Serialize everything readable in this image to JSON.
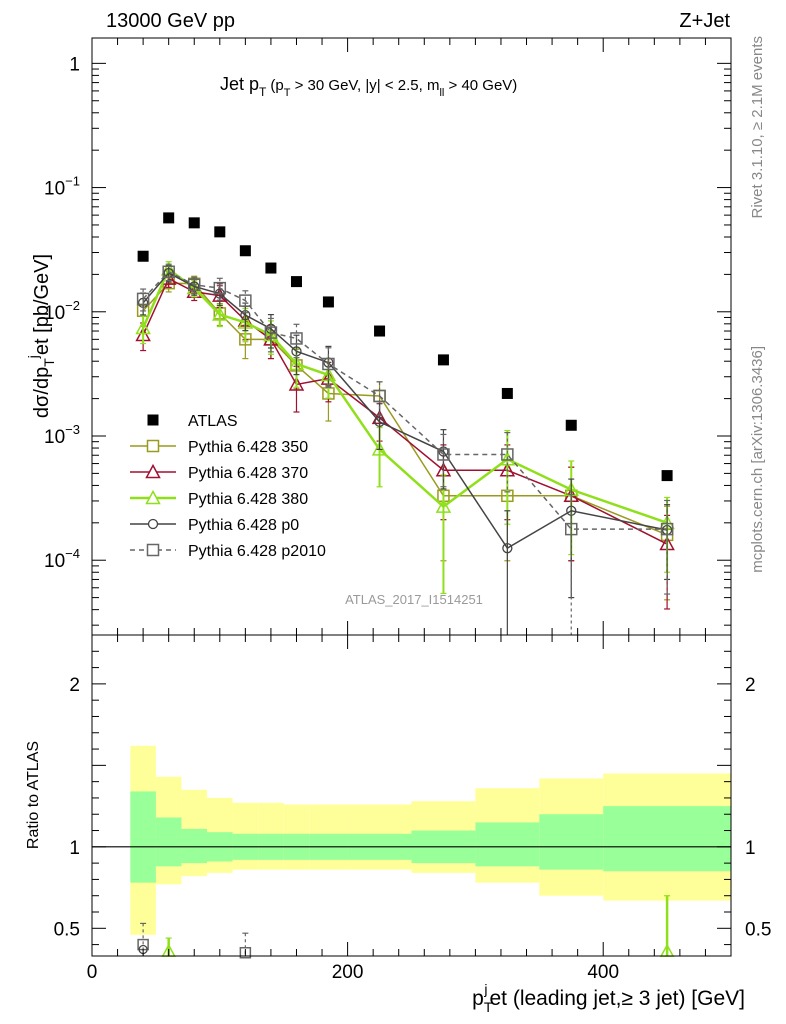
{
  "header": {
    "left": "13000 GeV pp",
    "right": "Z+Jet"
  },
  "side_labels": {
    "rivet": "Rivet 3.1.10, ≥ 2.1M events",
    "mcplots": "mcplots.cern.ch [arXiv:1306.3436]"
  },
  "plot_title": {
    "main": "Jet p",
    "main_sub": "T",
    "cuts_1": "(p",
    "cuts_1_sub": "T",
    "cuts_2": " > 30 GeV, |y| < 2.5, m",
    "cuts_2_sub": "ll",
    "cuts_3": " > 40 GeV)"
  },
  "watermark": "ATLAS_2017_I1514251",
  "axes": {
    "ylabel_top": "dσ/dp",
    "ylabel_top_sub": "T",
    "ylabel_top_sup": "j",
    "ylabel_top_tail": "et [pb/GeV]",
    "ylabel_bottom": "Ratio to ATLAS",
    "xlabel_head": "p",
    "xlabel_sub": "T",
    "xlabel_sup": "j",
    "xlabel_tail": "et (leading jet,≥ 3 jet) [GeV]"
  },
  "chart_data": {
    "type": "scatter",
    "x_scale": "linear",
    "y_scale_main": "log",
    "xlim": [
      0,
      500
    ],
    "ylim_main": [
      2.5e-05,
      1.6
    ],
    "ylim_ratio": [
      0.33,
      2.3
    ],
    "x_ticks": [
      0,
      200,
      400
    ],
    "y_ticks_main": [
      {
        "value": 1,
        "label": "1"
      },
      {
        "value": 0.1,
        "label": "10",
        "exp": "−1"
      },
      {
        "value": 0.01,
        "label": "10",
        "exp": "−2"
      },
      {
        "value": 0.001,
        "label": "10",
        "exp": "−3"
      },
      {
        "value": 0.0001,
        "label": "10",
        "exp": "−4"
      }
    ],
    "y_ticks_ratio": [
      {
        "value": 0.5,
        "label": "0.5"
      },
      {
        "value": 1,
        "label": "1"
      },
      {
        "value": 2,
        "label": "2"
      }
    ],
    "bins": [
      [
        30,
        50
      ],
      [
        50,
        70
      ],
      [
        70,
        90
      ],
      [
        90,
        110
      ],
      [
        110,
        130
      ],
      [
        130,
        150
      ],
      [
        150,
        170
      ],
      [
        170,
        200
      ],
      [
        200,
        250
      ],
      [
        250,
        300
      ],
      [
        300,
        350
      ],
      [
        350,
        400
      ],
      [
        400,
        500
      ]
    ],
    "legend_placement": "lower-left",
    "series": [
      {
        "name": "ATLAS",
        "color": "#000000",
        "marker": "filled-square",
        "x": [
          40,
          60,
          80,
          100,
          120,
          140,
          160,
          185,
          225,
          275,
          325,
          375,
          450
        ],
        "y": [
          0.028,
          0.057,
          0.052,
          0.044,
          0.031,
          0.0225,
          0.0175,
          0.012,
          0.007,
          0.0041,
          0.0022,
          0.00122,
          0.00048
        ]
      },
      {
        "name": "Pythia 6.428 350",
        "color": "#9a9a1e",
        "marker": "open-square",
        "width": 1.5,
        "x": [
          40,
          60,
          80,
          100,
          120,
          140,
          160,
          185,
          225,
          275,
          325,
          375,
          450
        ],
        "y": [
          0.0102,
          0.017,
          0.0168,
          0.0097,
          0.006,
          0.006,
          0.0037,
          0.0022,
          0.0021,
          0.00033,
          0.00033,
          0.00033,
          0.00016
        ],
        "err": [
          0.25,
          0.15,
          0.15,
          0.2,
          0.3,
          0.3,
          0.35,
          0.4,
          0.3,
          0.7,
          0.7,
          0.7,
          0.7
        ]
      },
      {
        "name": "Pythia 6.428 370",
        "color": "#a01030",
        "marker": "open-triangle",
        "width": 1.5,
        "x": [
          40,
          60,
          80,
          100,
          120,
          140,
          160,
          185,
          225,
          275,
          325,
          375,
          450
        ],
        "y": [
          0.0065,
          0.0185,
          0.0145,
          0.0135,
          0.0085,
          0.006,
          0.0026,
          0.0029,
          0.0014,
          0.00053,
          0.00053,
          0.00033,
          0.000135
        ],
        "err": [
          0.25,
          0.15,
          0.15,
          0.2,
          0.3,
          0.3,
          0.4,
          0.35,
          0.35,
          0.6,
          0.6,
          0.7,
          0.7
        ]
      },
      {
        "name": "Pythia 6.428 380",
        "color": "#8fe01a",
        "marker": "open-triangle",
        "width": 2.5,
        "x": [
          40,
          60,
          80,
          100,
          120,
          140,
          160,
          185,
          225,
          275,
          325,
          375,
          450
        ],
        "y": [
          0.0074,
          0.022,
          0.0155,
          0.0095,
          0.0082,
          0.0065,
          0.0038,
          0.0031,
          0.00078,
          0.00027,
          0.00065,
          0.00037,
          0.0002
        ],
        "err": [
          0.25,
          0.15,
          0.15,
          0.2,
          0.3,
          0.3,
          0.35,
          0.35,
          0.5,
          0.8,
          0.7,
          0.7,
          0.6
        ]
      },
      {
        "name": "Pythia 6.428 p0",
        "color": "#444444",
        "marker": "open-circle",
        "width": 1.5,
        "x": [
          40,
          60,
          80,
          100,
          120,
          140,
          160,
          185,
          225,
          275,
          325,
          375,
          450
        ],
        "y": [
          0.0118,
          0.0205,
          0.016,
          0.014,
          0.0094,
          0.0073,
          0.0048,
          0.0039,
          0.0013,
          0.00075,
          0.000125,
          0.00025,
          0.000175
        ],
        "err": [
          0.2,
          0.15,
          0.15,
          0.2,
          0.25,
          0.3,
          0.35,
          0.35,
          0.4,
          0.5,
          1.0,
          0.8,
          0.6
        ]
      },
      {
        "name": "Pythia 6.428 p2010",
        "color": "#666666",
        "marker": "open-square",
        "dash": "5,4",
        "width": 1.5,
        "x": [
          40,
          60,
          80,
          100,
          120,
          140,
          160,
          185,
          225,
          275,
          325,
          375,
          450
        ],
        "y": [
          0.0127,
          0.021,
          0.0165,
          0.0155,
          0.0123,
          0.0068,
          0.0061,
          0.0038,
          0.0021,
          0.00071,
          0.00071,
          0.000178,
          0.000178
        ],
        "err": [
          0.2,
          0.15,
          0.15,
          0.2,
          0.2,
          0.3,
          0.3,
          0.35,
          0.3,
          0.45,
          0.5,
          0.9,
          0.7
        ]
      }
    ],
    "ratio_bands": {
      "bins": [
        [
          30,
          50
        ],
        [
          50,
          70
        ],
        [
          70,
          90
        ],
        [
          90,
          110
        ],
        [
          110,
          130
        ],
        [
          130,
          150
        ],
        [
          150,
          170
        ],
        [
          170,
          200
        ],
        [
          200,
          250
        ],
        [
          250,
          300
        ],
        [
          300,
          350
        ],
        [
          350,
          400
        ],
        [
          400,
          500
        ]
      ],
      "stat_lo": [
        0.78,
        0.88,
        0.9,
        0.91,
        0.92,
        0.92,
        0.92,
        0.92,
        0.92,
        0.9,
        0.88,
        0.86,
        0.85
      ],
      "stat_hi": [
        1.34,
        1.18,
        1.11,
        1.09,
        1.08,
        1.08,
        1.08,
        1.08,
        1.08,
        1.1,
        1.15,
        1.2,
        1.25
      ],
      "total_lo": [
        0.46,
        0.77,
        0.82,
        0.84,
        0.86,
        0.86,
        0.86,
        0.86,
        0.86,
        0.84,
        0.78,
        0.7,
        0.67
      ],
      "total_hi": [
        1.62,
        1.43,
        1.35,
        1.3,
        1.27,
        1.27,
        1.26,
        1.26,
        1.26,
        1.28,
        1.36,
        1.42,
        1.45
      ],
      "stat_color": "#99ff99",
      "total_color": "#ffff99"
    },
    "ratio_points": [
      {
        "series": "Pythia 6.428 p2010",
        "x": 40,
        "y": 0.4,
        "err_hi": 0.53
      },
      {
        "series": "Pythia 6.428 p0",
        "x": 40,
        "y": 0.37
      },
      {
        "series": "Pythia 6.428 380",
        "x": 60,
        "y": 0.36,
        "err_hi": 0.44
      },
      {
        "series": "Pythia 6.428 p2010",
        "x": 120,
        "y": 0.35,
        "err_hi": 0.47
      },
      {
        "series": "Pythia 6.428 380",
        "x": 450,
        "y": 0.36,
        "err_hi": 0.7
      }
    ]
  }
}
